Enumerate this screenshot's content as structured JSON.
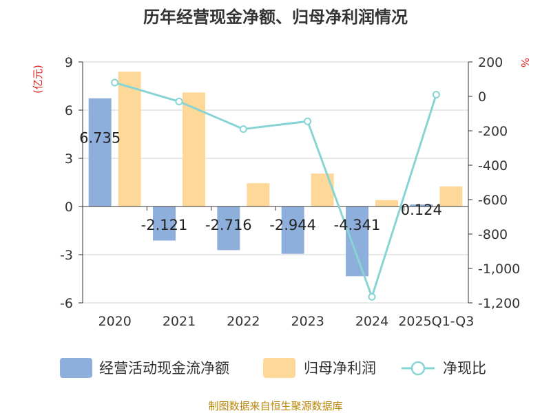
{
  "chart_data": {
    "type": "bar",
    "title": "历年经营现金净额、归母净利润情况",
    "categories": [
      "2020",
      "2021",
      "2022",
      "2023",
      "2024",
      "2025Q1-Q3"
    ],
    "series": [
      {
        "name": "经营活动现金流净额",
        "type": "bar",
        "axis": "left",
        "color": "#8eaedb",
        "values": [
          6.735,
          -2.121,
          -2.716,
          -2.944,
          -4.341,
          0.124
        ]
      },
      {
        "name": "归母净利润",
        "type": "bar",
        "axis": "left",
        "color": "#fdd898",
        "values": [
          8.4,
          7.1,
          1.45,
          2.05,
          0.4,
          1.25
        ]
      },
      {
        "name": "净现比",
        "type": "line",
        "axis": "right",
        "color": "#88d4d4",
        "values": [
          80,
          -30,
          -190,
          -145,
          -1165,
          10
        ]
      }
    ],
    "data_labels": [
      "6.735",
      "-2.121",
      "-2.716",
      "-2.944",
      "-4.341",
      "0.124"
    ],
    "left_axis": {
      "unit": "(亿元)",
      "ylim": [
        -6,
        9
      ],
      "ticks": [
        -6,
        -3,
        0,
        3,
        6,
        9
      ],
      "tick_labels": [
        "-6",
        "-3",
        "0",
        "3",
        "6",
        "9"
      ]
    },
    "right_axis": {
      "unit": "%",
      "ylim": [
        -1200,
        200
      ],
      "ticks": [
        -1200,
        -1000,
        -800,
        -600,
        -400,
        -200,
        0,
        200
      ],
      "tick_labels": [
        "-1,200",
        "-1,000",
        "-800",
        "-600",
        "-400",
        "-200",
        "0",
        "200"
      ]
    },
    "grid": true,
    "legend_position": "bottom"
  },
  "colors": {
    "unit_red": "#e02020",
    "axis": "#333333",
    "grid": "#d0d0d0",
    "source": "#b8860b"
  },
  "source_text": "制图数据来自恒生聚源数据库"
}
